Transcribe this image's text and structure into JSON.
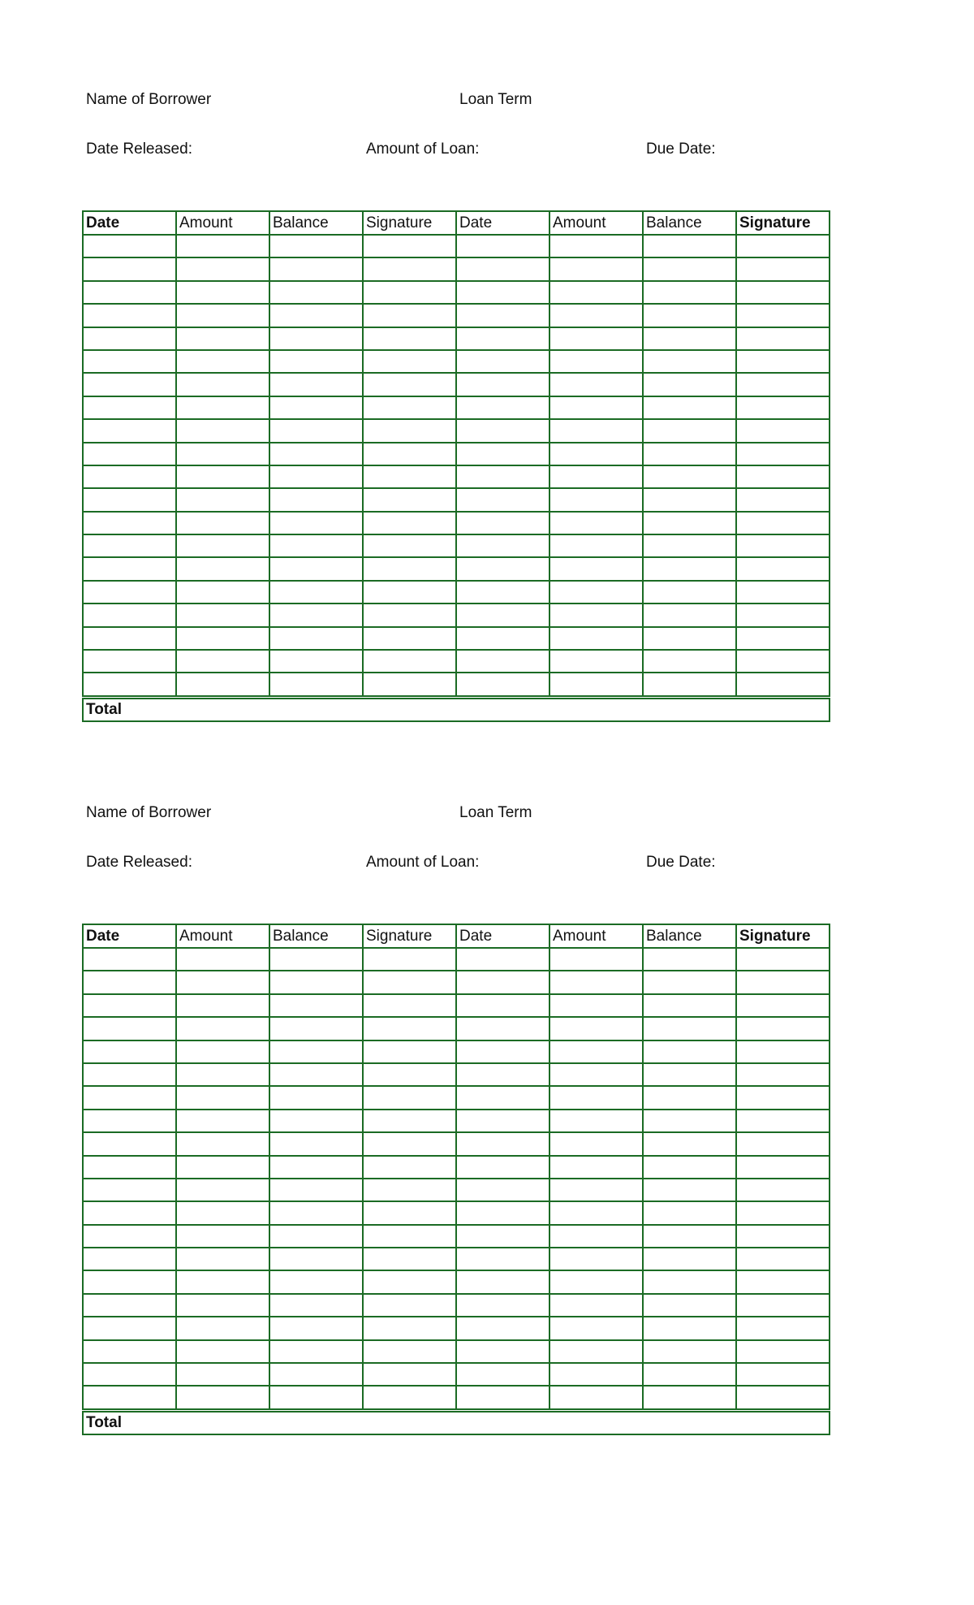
{
  "forms": [
    {
      "name_label": "Name of Borrower",
      "loan_term_label": "Loan Term",
      "date_released_label": "Date Released:",
      "amount_label": "Amount of Loan:",
      "due_date_label": "Due Date:",
      "columns": [
        "Date",
        "Amount",
        "Balance",
        "Signature",
        "Date",
        "Amount",
        "Balance",
        "Signature"
      ],
      "total_label": "Total"
    },
    {
      "name_label": "Name of Borrower",
      "loan_term_label": "Loan Term",
      "date_released_label": "Date Released:",
      "amount_label": "Amount of Loan:",
      "due_date_label": "Due Date:",
      "columns": [
        "Date",
        "Amount",
        "Balance",
        "Signature",
        "Date",
        "Amount",
        "Balance",
        "Signature"
      ],
      "total_label": "Total"
    }
  ],
  "border_color": "#1b6b24"
}
